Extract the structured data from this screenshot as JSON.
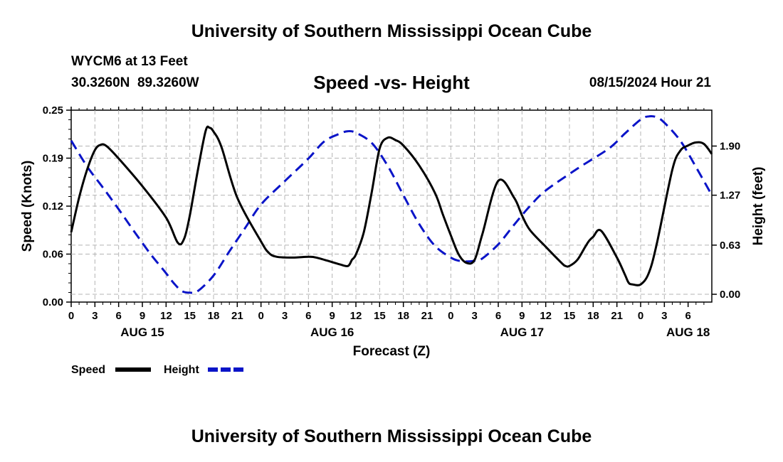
{
  "header": {
    "title": "University of Southern Mississippi Ocean Cube",
    "station": "WYCM6 at 13 Feet",
    "coords": "30.3260N  89.3260W",
    "subtitle": "Speed -vs- Height",
    "datetime": "08/15/2024 Hour 21"
  },
  "footer": {
    "title": "University of Southern Mississippi Ocean Cube"
  },
  "chart_data": {
    "type": "line",
    "title": "Speed -vs- Height",
    "xlabel": "Forecast (Z)",
    "ylabel_left": "Speed (Knots)",
    "ylabel_right": "Height (feet)",
    "x_range_hours": [
      0,
      81
    ],
    "x_ticks": [
      "0",
      "3",
      "6",
      "9",
      "12",
      "15",
      "18",
      "21",
      "0",
      "3",
      "6",
      "9",
      "12",
      "15",
      "18",
      "21",
      "0",
      "3",
      "6",
      "9",
      "12",
      "15",
      "18",
      "21",
      "0",
      "3",
      "6"
    ],
    "date_labels": [
      {
        "label": "AUG 15",
        "hour": 9
      },
      {
        "label": "AUG 16",
        "hour": 33
      },
      {
        "label": "AUG 17",
        "hour": 57
      },
      {
        "label": "AUG 18",
        "hour": 78
      }
    ],
    "ylim_left": [
      0,
      0.25
    ],
    "yticks_left": [
      "0.00",
      "0.06",
      "0.12",
      "0.19",
      "0.25"
    ],
    "ylim_right": [
      -0.1,
      2.36
    ],
    "yticks_right": [
      "0.00",
      "0.63",
      "1.27",
      "1.90"
    ],
    "grid": true,
    "colors": {
      "speed": "#000000",
      "height": "#0a14c8"
    },
    "series": [
      {
        "name": "Speed",
        "axis": "left",
        "x": [
          0,
          1,
          2,
          3,
          3.75,
          4.5,
          6,
          9,
          12,
          13.5,
          14.3,
          15,
          16,
          17,
          17.5,
          18,
          19,
          21,
          24,
          25,
          26,
          28,
          30,
          31,
          33,
          34,
          35,
          35.5,
          36,
          37,
          38,
          39,
          40,
          41,
          42,
          44,
          46,
          47,
          48,
          49,
          50,
          51,
          52,
          54,
          56,
          57,
          58,
          60,
          62,
          62.5,
          63,
          64,
          65,
          65.5,
          66,
          67,
          69,
          70,
          70.5,
          71,
          72,
          73,
          74,
          76,
          77,
          78,
          79,
          80,
          81
        ],
        "values": [
          0.091,
          0.136,
          0.172,
          0.198,
          0.205,
          0.203,
          0.187,
          0.151,
          0.11,
          0.077,
          0.083,
          0.113,
          0.171,
          0.223,
          0.227,
          0.222,
          0.202,
          0.136,
          0.079,
          0.064,
          0.059,
          0.058,
          0.059,
          0.058,
          0.052,
          0.049,
          0.047,
          0.055,
          0.062,
          0.091,
          0.143,
          0.2,
          0.214,
          0.211,
          0.204,
          0.178,
          0.142,
          0.114,
          0.087,
          0.062,
          0.051,
          0.055,
          0.089,
          0.158,
          0.136,
          0.113,
          0.094,
          0.072,
          0.051,
          0.047,
          0.047,
          0.055,
          0.072,
          0.08,
          0.085,
          0.093,
          0.058,
          0.036,
          0.025,
          0.023,
          0.023,
          0.037,
          0.074,
          0.172,
          0.197,
          0.204,
          0.208,
          0.206,
          0.193
        ]
      },
      {
        "name": "Height",
        "axis": "right",
        "x": [
          0,
          2,
          4,
          6,
          8,
          10,
          12,
          13,
          14,
          15,
          16,
          18,
          20,
          22,
          24,
          27,
          30,
          32,
          34,
          35,
          36,
          38,
          40,
          42,
          44,
          46,
          48,
          49,
          50,
          51,
          52,
          54,
          56,
          58,
          60,
          64,
          68,
          70,
          72,
          73,
          74,
          75,
          77,
          79,
          81
        ],
        "values": [
          1.97,
          1.64,
          1.37,
          1.09,
          0.8,
          0.52,
          0.27,
          0.14,
          0.04,
          0.02,
          0.04,
          0.24,
          0.55,
          0.85,
          1.15,
          1.45,
          1.74,
          1.96,
          2.06,
          2.09,
          2.07,
          1.94,
          1.65,
          1.27,
          0.9,
          0.62,
          0.47,
          0.43,
          0.42,
          0.43,
          0.46,
          0.64,
          0.89,
          1.13,
          1.33,
          1.61,
          1.87,
          2.06,
          2.24,
          2.28,
          2.27,
          2.2,
          1.97,
          1.63,
          1.27
        ]
      }
    ]
  }
}
